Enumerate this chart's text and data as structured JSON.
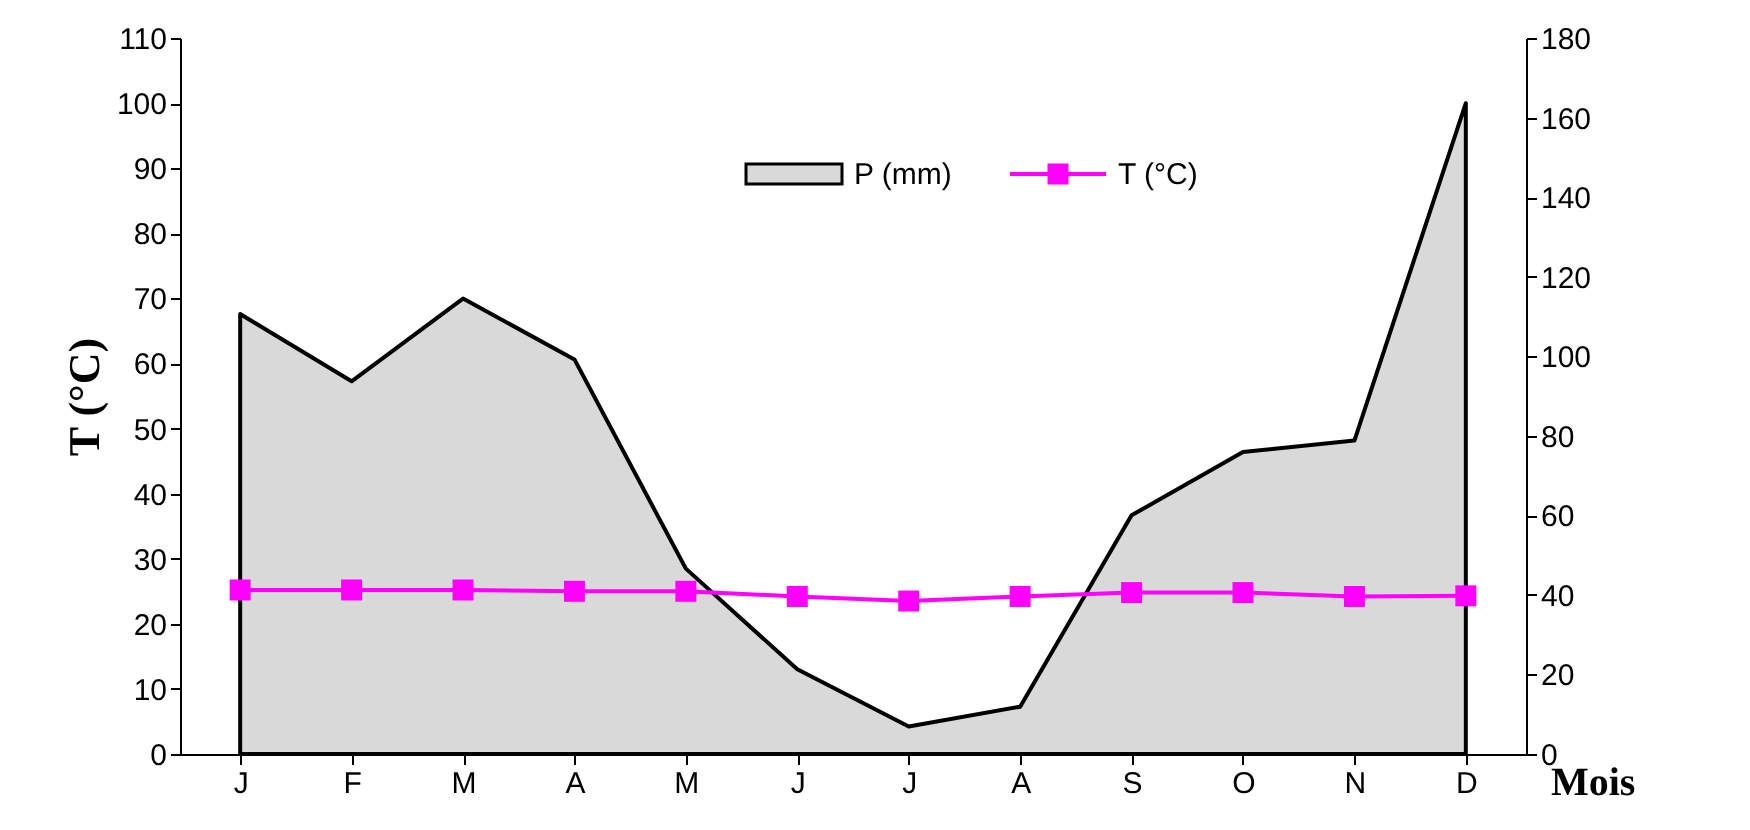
{
  "chart_data": {
    "type": "line",
    "xlabel": "Mois",
    "ylabel": "T (°C)",
    "categories": [
      "J",
      "F",
      "M",
      "A",
      "M",
      "J",
      "J",
      "A",
      "S",
      "O",
      "N",
      "D"
    ],
    "series": [
      {
        "name": "P (mm)",
        "type": "area",
        "axis": "y2",
        "color": "#d9d9d9",
        "values": [
          110.6,
          93.7,
          114.5,
          99.2,
          46.6,
          21.3,
          6.9,
          11.9,
          60,
          75.9,
          78.8,
          163.6
        ]
      },
      {
        "name": "T (°C)",
        "marker": "square",
        "color": "#ff00ff",
        "values": [
          25.2,
          25.2,
          25.2,
          25.0,
          25.0,
          24.2,
          23.5,
          24.2,
          24.8,
          24.8,
          24.2,
          24.3
        ]
      }
    ],
    "ylim": [
      0,
      110
    ],
    "yticks": [
      0,
      10,
      20,
      30,
      40,
      50,
      60,
      70,
      80,
      90,
      100,
      110
    ],
    "y2lim": [
      0,
      180
    ],
    "y2ticks": [
      0,
      20,
      40,
      60,
      80,
      100,
      120,
      140,
      160,
      180
    ],
    "grid": false,
    "legend": "top"
  }
}
